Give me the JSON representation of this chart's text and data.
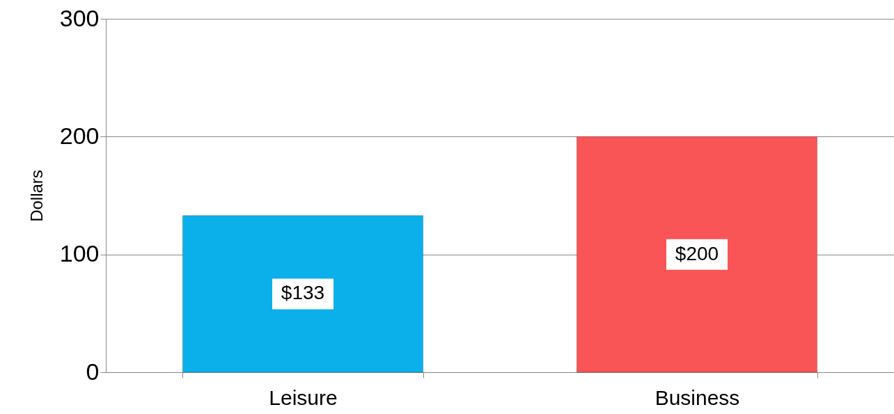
{
  "chart_data": {
    "type": "bar",
    "ylabel": "Dollars",
    "categories": [
      "Leisure",
      "Business"
    ],
    "values": [
      133,
      200
    ],
    "colors": [
      "#0bb0ea",
      "#f95556"
    ],
    "value_labels": [
      "$133",
      "$200"
    ],
    "ylim": [
      0,
      300
    ],
    "yticks": [
      0,
      100,
      200,
      300
    ],
    "grid": "y"
  }
}
